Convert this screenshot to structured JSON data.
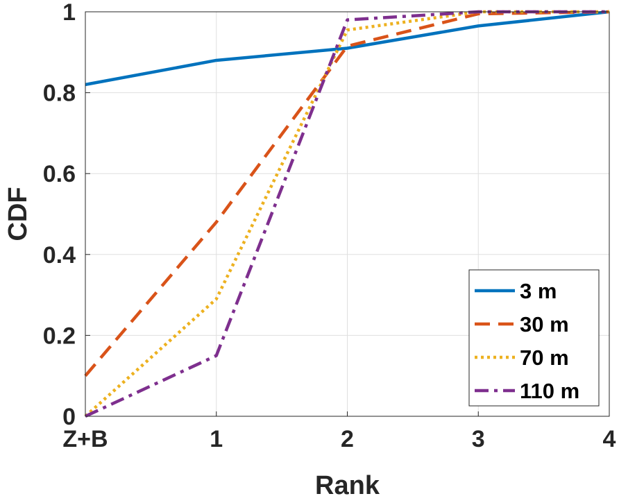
{
  "chart_data": {
    "type": "line",
    "title": "",
    "xlabel": "Rank",
    "ylabel": "CDF",
    "categories": [
      "Z+B",
      "1",
      "2",
      "3",
      "4"
    ],
    "x": [
      0,
      1,
      2,
      3,
      4
    ],
    "xlim": [
      0,
      4
    ],
    "ylim": [
      0,
      1
    ],
    "yticks": [
      0,
      0.2,
      0.4,
      0.6,
      0.8,
      1
    ],
    "ytick_labels": [
      "0",
      "0.2",
      "0.4",
      "0.6",
      "0.8",
      "1"
    ],
    "grid": true,
    "legend_position": "bottom-right",
    "series": [
      {
        "name": "3 m",
        "color": "#0072BD",
        "style": "solid",
        "values": [
          0.82,
          0.88,
          0.91,
          0.965,
          1.0
        ]
      },
      {
        "name": "30 m",
        "color": "#D95319",
        "style": "dashed",
        "values": [
          0.1,
          0.48,
          0.915,
          0.995,
          1.0
        ]
      },
      {
        "name": "70 m",
        "color": "#EDB120",
        "style": "dotted",
        "values": [
          0.0,
          0.29,
          0.955,
          1.0,
          1.0
        ]
      },
      {
        "name": "110 m",
        "color": "#7E2F8E",
        "style": "dashdot",
        "values": [
          0.0,
          0.15,
          0.98,
          1.0,
          1.0
        ]
      }
    ]
  }
}
